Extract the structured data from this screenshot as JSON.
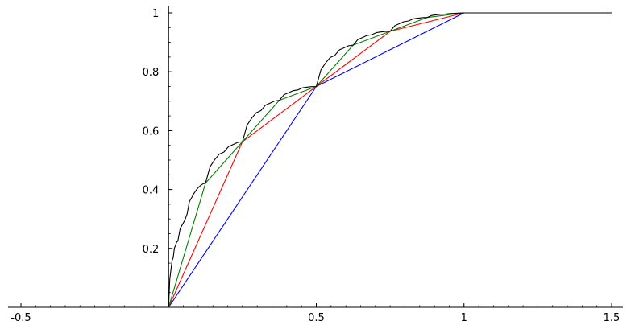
{
  "chart_data": {
    "type": "line",
    "title": "",
    "xlabel": "",
    "ylabel": "",
    "xlim": [
      -0.5,
      1.5
    ],
    "ylim": [
      0,
      1
    ],
    "grid": false,
    "legend": "none",
    "x_ticks": [
      {
        "value": -0.5,
        "label": "-0.5"
      },
      {
        "value": 0.5,
        "label": "0.5"
      },
      {
        "value": 1,
        "label": "1"
      },
      {
        "value": 1.5,
        "label": "1.5"
      }
    ],
    "y_ticks": [
      {
        "value": 0.2,
        "label": "0.2"
      },
      {
        "value": 0.4,
        "label": "0.4"
      },
      {
        "value": 0.6,
        "label": "0.6"
      },
      {
        "value": 0.8,
        "label": "0.8"
      },
      {
        "value": 1,
        "label": "1"
      }
    ],
    "series": [
      {
        "color": "#0000ff",
        "points": [
          [
            -0.5,
            0
          ],
          [
            0,
            0
          ],
          [
            0.5,
            0.75
          ],
          [
            1,
            1
          ],
          [
            1.5,
            1
          ]
        ]
      },
      {
        "color": "#ff0000",
        "points": [
          [
            -0.5,
            0
          ],
          [
            0,
            0
          ],
          [
            0.25,
            0.5625
          ],
          [
            0.5,
            0.75
          ],
          [
            0.75,
            0.9375
          ],
          [
            1,
            1
          ],
          [
            1.5,
            1
          ]
        ]
      },
      {
        "color": "#008000",
        "points": [
          [
            -0.5,
            0
          ],
          [
            0,
            0
          ],
          [
            0.125,
            0.421875
          ],
          [
            0.25,
            0.5625
          ],
          [
            0.375,
            0.703125
          ],
          [
            0.5,
            0.75
          ],
          [
            0.625,
            0.890625
          ],
          [
            0.75,
            0.9375
          ],
          [
            0.875,
            0.984375
          ],
          [
            1,
            1
          ],
          [
            1.5,
            1
          ]
        ]
      },
      {
        "color": "#000000",
        "points": [
          [
            -0.5,
            0
          ],
          [
            0,
            0
          ],
          [
            0.0039,
            0.0949
          ],
          [
            0.0078,
            0.1265
          ],
          [
            0.0117,
            0.1582
          ],
          [
            0.0156,
            0.1687
          ],
          [
            0.0195,
            0.2004
          ],
          [
            0.0234,
            0.2109
          ],
          [
            0.0273,
            0.2215
          ],
          [
            0.0313,
            0.225
          ],
          [
            0.0391,
            0.2672
          ],
          [
            0.0469,
            0.2812
          ],
          [
            0.0547,
            0.2953
          ],
          [
            0.0625,
            0.3164
          ],
          [
            0.0703,
            0.3586
          ],
          [
            0.0781,
            0.3727
          ],
          [
            0.0859,
            0.3867
          ],
          [
            0.0938,
            0.3984
          ],
          [
            0.1016,
            0.4078
          ],
          [
            0.1094,
            0.4148
          ],
          [
            0.1172,
            0.4195
          ],
          [
            0.125,
            0.4219
          ],
          [
            0.1406,
            0.4781
          ],
          [
            0.1563,
            0.5016
          ],
          [
            0.1719,
            0.5203
          ],
          [
            0.1875,
            0.5273
          ],
          [
            0.2031,
            0.5461
          ],
          [
            0.2188,
            0.5531
          ],
          [
            0.2344,
            0.5602
          ],
          [
            0.25,
            0.5625
          ],
          [
            0.2656,
            0.6188
          ],
          [
            0.2813,
            0.6422
          ],
          [
            0.2969,
            0.6609
          ],
          [
            0.3125,
            0.668
          ],
          [
            0.3281,
            0.6867
          ],
          [
            0.3438,
            0.6938
          ],
          [
            0.3594,
            0.7008
          ],
          [
            0.375,
            0.7031
          ],
          [
            0.3906,
            0.7219
          ],
          [
            0.4063,
            0.7289
          ],
          [
            0.4219,
            0.7359
          ],
          [
            0.4375,
            0.7383
          ],
          [
            0.4531,
            0.7453
          ],
          [
            0.4688,
            0.7477
          ],
          [
            0.4844,
            0.7494
          ],
          [
            0.5,
            0.75
          ],
          [
            0.5156,
            0.8063
          ],
          [
            0.5313,
            0.8297
          ],
          [
            0.5469,
            0.8484
          ],
          [
            0.5625,
            0.8555
          ],
          [
            0.5781,
            0.8742
          ],
          [
            0.5938,
            0.8813
          ],
          [
            0.6094,
            0.8883
          ],
          [
            0.625,
            0.8906
          ],
          [
            0.6406,
            0.9094
          ],
          [
            0.6563,
            0.9164
          ],
          [
            0.6719,
            0.9234
          ],
          [
            0.6875,
            0.9258
          ],
          [
            0.7031,
            0.9328
          ],
          [
            0.7188,
            0.9352
          ],
          [
            0.7344,
            0.9369
          ],
          [
            0.75,
            0.9375
          ],
          [
            0.7656,
            0.9563
          ],
          [
            0.7813,
            0.9633
          ],
          [
            0.7969,
            0.9703
          ],
          [
            0.8125,
            0.9727
          ],
          [
            0.8281,
            0.9797
          ],
          [
            0.8438,
            0.982
          ],
          [
            0.8594,
            0.9838
          ],
          [
            0.875,
            0.9844
          ],
          [
            0.8906,
            0.9914
          ],
          [
            0.9063,
            0.9938
          ],
          [
            0.9219,
            0.9955
          ],
          [
            0.9375,
            0.9961
          ],
          [
            0.9531,
            0.9979
          ],
          [
            0.9688,
            0.9986
          ],
          [
            0.9844,
            0.9996
          ],
          [
            1,
            1
          ],
          [
            1.5,
            1
          ]
        ]
      }
    ]
  }
}
